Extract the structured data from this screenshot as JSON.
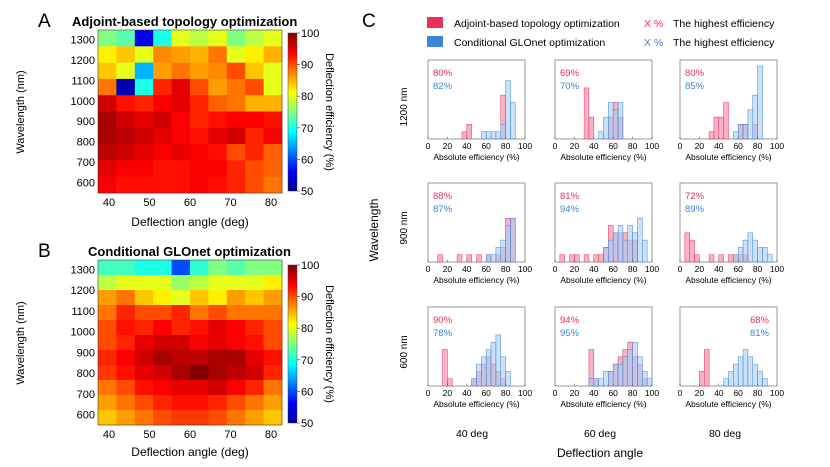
{
  "panel_labels": {
    "a": "A",
    "b": "B",
    "c": "C"
  },
  "legend": {
    "adjoint_label": "Adjoint-based topology optimization",
    "glonet_label": "Conditional GLOnet optimization",
    "adjoint_marker": "X %",
    "glonet_marker": "X %",
    "highest_text_1": "The highest efficiency",
    "highest_text_2": "The highest efficiency",
    "adjoint_color": "#e8315a",
    "glonet_color": "#3a86d8"
  },
  "grid_c": {
    "row_labels": [
      "1200 nm",
      "900 nm",
      "600 nm"
    ],
    "col_labels": [
      "40 deg",
      "60 deg",
      "80 deg"
    ],
    "y_title": "Wavelength",
    "x_title": "Deflection angle",
    "hist_xlabel": "Absolute efficiency (%)",
    "hist_ticks": [
      "0",
      "20",
      "40",
      "60",
      "80",
      "100"
    ]
  },
  "chart_data": [
    {
      "type": "heatmap",
      "title": "Adjoint-based topology optimization",
      "xlabel": "Deflection angle (deg)",
      "ylabel": "Wavelength (nm)",
      "x_ticks": [
        "40",
        "50",
        "60",
        "70",
        "80"
      ],
      "y_ticks": [
        "600",
        "700",
        "800",
        "900",
        "1000",
        "1100",
        "1200",
        "1300"
      ],
      "colorbar_label": "Deflection efficiency (%)",
      "colorbar_ticks": [
        "50",
        "60",
        "70",
        "80",
        "90",
        "100"
      ],
      "zlim": [
        50,
        100
      ],
      "values": [
        [
          75,
          73,
          55,
          70,
          80,
          78,
          80,
          75,
          78,
          80
        ],
        [
          82,
          84,
          80,
          87,
          86,
          85,
          88,
          80,
          82,
          85
        ],
        [
          84,
          80,
          65,
          86,
          88,
          86,
          87,
          90,
          84,
          80
        ],
        [
          88,
          52,
          70,
          92,
          95,
          90,
          86,
          88,
          90,
          80
        ],
        [
          96,
          93,
          92,
          94,
          95,
          92,
          89,
          88,
          85,
          85
        ],
        [
          98,
          96,
          95,
          96,
          94,
          92,
          93,
          94,
          94,
          93
        ],
        [
          98,
          97,
          96,
          95,
          94,
          93,
          95,
          96,
          92,
          94
        ],
        [
          97,
          96,
          95,
          94,
          95,
          94,
          93,
          90,
          92,
          89
        ],
        [
          95,
          94,
          94,
          93,
          93,
          94,
          94,
          92,
          90,
          89
        ],
        [
          94,
          93,
          93,
          93,
          93,
          94,
          93,
          92,
          90,
          88
        ]
      ]
    },
    {
      "type": "heatmap",
      "title": "Conditional GLOnet optimization",
      "xlabel": "Deflection angle (deg)",
      "ylabel": "Wavelength (nm)",
      "x_ticks": [
        "40",
        "50",
        "60",
        "70",
        "80"
      ],
      "y_ticks": [
        "600",
        "700",
        "800",
        "900",
        "1000",
        "1100",
        "1200",
        "1300"
      ],
      "colorbar_label": "Deflection efficiency (%)",
      "colorbar_ticks": [
        "50",
        "60",
        "70",
        "80",
        "90",
        "100"
      ],
      "zlim": [
        50,
        100
      ],
      "values": [
        [
          72,
          72,
          70,
          70,
          60,
          71,
          75,
          73,
          75,
          75
        ],
        [
          78,
          80,
          80,
          80,
          76,
          78,
          80,
          80,
          80,
          82
        ],
        [
          86,
          88,
          84,
          82,
          80,
          84,
          82,
          86,
          84,
          86
        ],
        [
          88,
          92,
          90,
          90,
          92,
          88,
          90,
          88,
          88,
          88
        ],
        [
          90,
          93,
          92,
          94,
          92,
          93,
          95,
          94,
          92,
          90
        ],
        [
          90,
          92,
          95,
          96,
          96,
          94,
          95,
          94,
          93,
          90
        ],
        [
          92,
          94,
          96,
          98,
          97,
          97,
          98,
          98,
          95,
          93
        ],
        [
          91,
          93,
          95,
          96,
          98,
          100,
          98,
          97,
          96,
          92
        ],
        [
          88,
          90,
          93,
          94,
          95,
          95,
          96,
          94,
          92,
          88
        ],
        [
          86,
          88,
          90,
          92,
          93,
          93,
          92,
          90,
          88,
          86
        ],
        [
          84,
          86,
          88,
          90,
          91,
          91,
          90,
          88,
          86,
          84
        ]
      ]
    },
    {
      "type": "bar",
      "subtype": "histogram-grid",
      "x_range": [
        0,
        100
      ],
      "bin_width": 5,
      "series_names": [
        "Adjoint-based topology optimization",
        "Conditional GLOnet optimization"
      ],
      "panels": [
        {
          "row": "1200 nm",
          "col": "40 deg",
          "adjoint_highest": "80%",
          "glonet_highest": "82%",
          "adjoint": [
            0,
            0,
            0,
            0,
            0,
            0,
            0,
            1,
            2,
            0,
            0,
            0,
            0,
            0,
            0,
            6,
            0,
            0,
            0,
            0
          ],
          "glonet": [
            0,
            0,
            0,
            0,
            0,
            0,
            0,
            0,
            0,
            0,
            0,
            1,
            1,
            1,
            1,
            2,
            8,
            5,
            0,
            0
          ]
        },
        {
          "row": "1200 nm",
          "col": "60 deg",
          "adjoint_highest": "69%",
          "glonet_highest": "70%",
          "adjoint": [
            0,
            0,
            0,
            0,
            0,
            0,
            7,
            3,
            0,
            0,
            0,
            3,
            5,
            3,
            0,
            0,
            0,
            0,
            0,
            0
          ],
          "glonet": [
            0,
            0,
            0,
            0,
            0,
            0,
            0,
            0,
            0,
            1,
            3,
            5,
            4,
            5,
            0,
            0,
            0,
            0,
            0,
            0
          ]
        },
        {
          "row": "1200 nm",
          "col": "80 deg",
          "adjoint_highest": "80%",
          "glonet_highest": "85%",
          "adjoint": [
            0,
            0,
            0,
            0,
            0,
            0,
            1,
            3,
            3,
            5,
            0,
            0,
            2,
            2,
            0,
            2,
            0,
            0,
            0,
            0
          ],
          "glonet": [
            0,
            0,
            0,
            0,
            0,
            0,
            0,
            0,
            0,
            0,
            0,
            1,
            2,
            2,
            4,
            6,
            10,
            0,
            0,
            0
          ]
        },
        {
          "row": "900 nm",
          "col": "40 deg",
          "adjoint_highest": "88%",
          "glonet_highest": "87%",
          "adjoint": [
            0,
            0,
            1,
            0,
            0,
            0,
            1,
            0,
            1,
            0,
            1,
            0,
            1,
            0,
            1,
            2,
            6,
            6,
            0,
            0
          ],
          "glonet": [
            0,
            0,
            0,
            0,
            0,
            0,
            0,
            0,
            0,
            0,
            0,
            0,
            1,
            1,
            2,
            3,
            5,
            6,
            0,
            0
          ]
        },
        {
          "row": "900 nm",
          "col": "60 deg",
          "adjoint_highest": "81%",
          "glonet_highest": "94%",
          "adjoint": [
            0,
            1,
            0,
            1,
            1,
            0,
            1,
            0,
            1,
            1,
            2,
            5,
            4,
            4,
            4,
            3,
            3,
            0,
            0,
            0
          ],
          "glonet": [
            0,
            0,
            0,
            0,
            0,
            0,
            0,
            0,
            0,
            0,
            2,
            3,
            4,
            5,
            3,
            5,
            4,
            6,
            3,
            0
          ]
        },
        {
          "row": "900 nm",
          "col": "80 deg",
          "adjoint_highest": "72%",
          "glonet_highest": "89%",
          "adjoint": [
            0,
            4,
            3,
            1,
            0,
            0,
            1,
            0,
            1,
            0,
            1,
            1,
            1,
            1,
            0,
            0,
            0,
            0,
            0,
            0
          ],
          "glonet": [
            0,
            0,
            0,
            0,
            0,
            0,
            0,
            0,
            0,
            0,
            0,
            1,
            2,
            3,
            4,
            3,
            2,
            2,
            1,
            0
          ]
        },
        {
          "row": "600 nm",
          "col": "40 deg",
          "adjoint_highest": "90%",
          "glonet_highest": "78%",
          "adjoint": [
            0,
            0,
            0,
            5,
            1,
            0,
            0,
            0,
            0,
            1,
            2,
            3,
            4,
            3,
            2,
            1,
            0,
            0,
            0,
            0
          ],
          "glonet": [
            0,
            0,
            0,
            0,
            0,
            0,
            0,
            0,
            0,
            1,
            3,
            4,
            5,
            6,
            7,
            4,
            2,
            0,
            0,
            0
          ]
        },
        {
          "row": "600 nm",
          "col": "60 deg",
          "adjoint_highest": "94%",
          "glonet_highest": "95%",
          "adjoint": [
            0,
            0,
            0,
            0,
            0,
            0,
            0,
            5,
            1,
            0,
            0,
            2,
            3,
            4,
            5,
            6,
            4,
            3,
            1,
            0
          ],
          "glonet": [
            0,
            0,
            0,
            0,
            0,
            0,
            0,
            1,
            1,
            1,
            2,
            2,
            3,
            3,
            4,
            5,
            6,
            4,
            2,
            1
          ]
        },
        {
          "row": "600 nm",
          "col": "80 deg",
          "adjoint_highest": "68%",
          "glonet_highest": "81%",
          "adjoint": [
            0,
            0,
            0,
            0,
            2,
            5,
            0,
            0,
            0,
            0,
            0,
            0,
            0,
            0,
            0,
            0,
            0,
            0,
            0,
            0
          ],
          "glonet": [
            0,
            0,
            0,
            0,
            0,
            0,
            0,
            0,
            0,
            1,
            2,
            3,
            4,
            5,
            4,
            3,
            2,
            1,
            0,
            0
          ]
        }
      ]
    }
  ]
}
